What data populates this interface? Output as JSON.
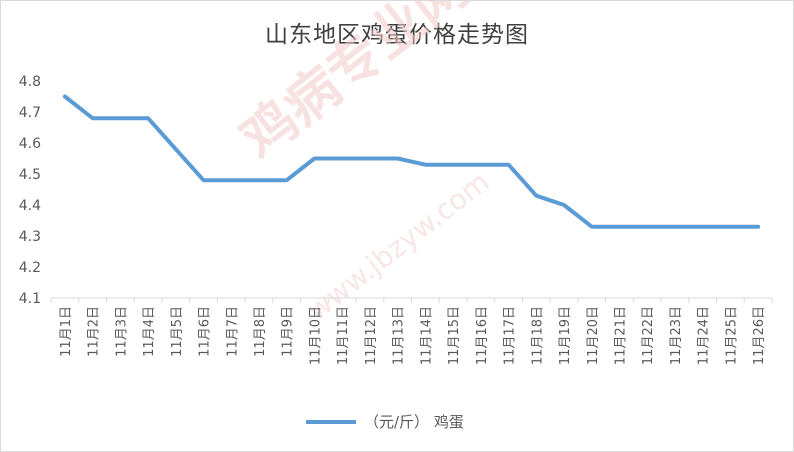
{
  "chart_data": {
    "type": "line",
    "title": "山东地区鸡蛋价格走势图",
    "categories": [
      "11月1日",
      "11月2日",
      "11月3日",
      "11月4日",
      "11月5日",
      "11月6日",
      "11月7日",
      "11月8日",
      "11月9日",
      "11月10日",
      "11月11日",
      "11月12日",
      "11月13日",
      "11月14日",
      "11月15日",
      "11月16日",
      "11月17日",
      "11月18日",
      "11月19日",
      "11月20日",
      "11月21日",
      "11月22日",
      "11月23日",
      "11月24日",
      "11月25日",
      "11月26日"
    ],
    "series": [
      {
        "name": "（元/斤） 鸡蛋",
        "color": "#5b9bd5",
        "values": [
          4.75,
          4.68,
          4.68,
          4.68,
          4.58,
          4.48,
          4.48,
          4.48,
          4.48,
          4.55,
          4.55,
          4.55,
          4.55,
          4.53,
          4.53,
          4.53,
          4.53,
          4.43,
          4.4,
          4.33,
          4.33,
          4.33,
          4.33,
          4.33,
          4.33,
          4.33
        ]
      }
    ],
    "ylim": [
      4.1,
      4.8
    ],
    "yticks": [
      "4.1",
      "4.2",
      "4.3",
      "4.4",
      "4.5",
      "4.6",
      "4.7",
      "4.8"
    ],
    "grid": false,
    "legend": "bottom"
  },
  "watermark": {
    "text": "鸡病专业网",
    "url": "www.jbzyw.com"
  }
}
